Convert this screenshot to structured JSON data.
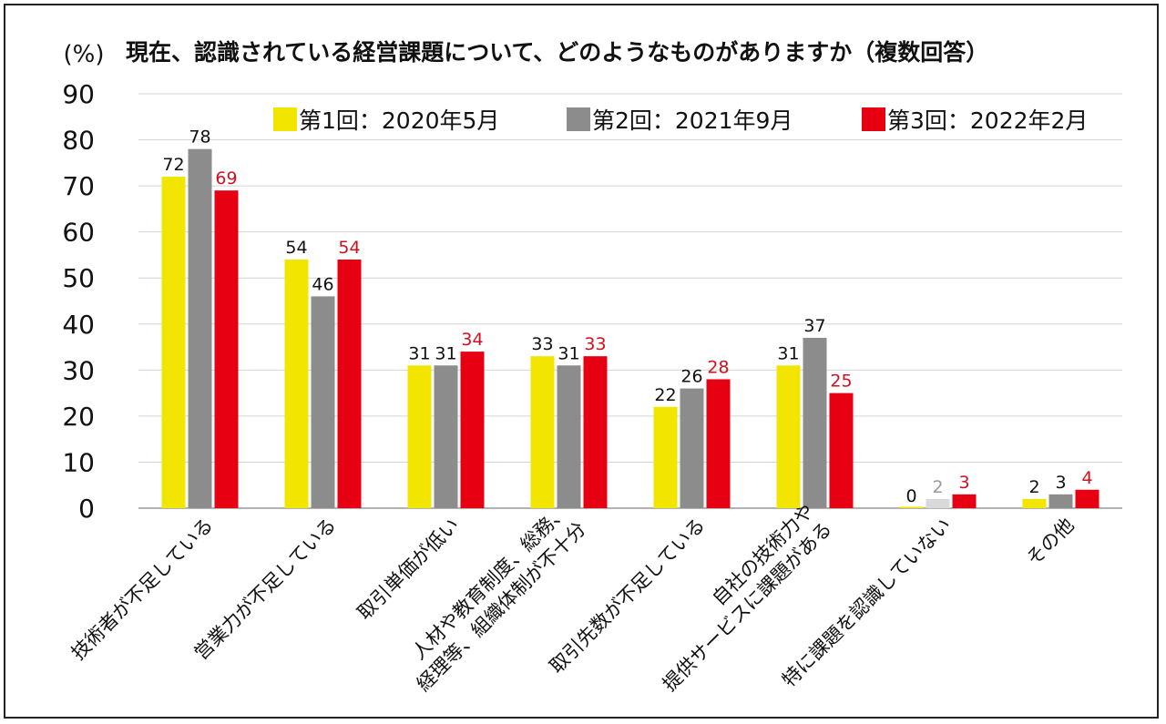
{
  "chart_data": {
    "type": "bar",
    "title": "現在、認識されている経営課題について、どのようなものがありますか（複数回答）",
    "ylabel": "(%)",
    "ylim": [
      0,
      90
    ],
    "yticks": [
      0,
      10,
      20,
      30,
      40,
      50,
      60,
      70,
      80,
      90
    ],
    "grid": true,
    "legend_position": "top-right",
    "categories": [
      [
        "技術者が不足している"
      ],
      [
        "営業力が不足している"
      ],
      [
        "取引単価が低い"
      ],
      [
        "人材や教育制度、総務、",
        "経理等、組織体制が不十分"
      ],
      [
        "取引先数が不足している"
      ],
      [
        "自社の技術力や",
        "提供サービスに課題がある"
      ],
      [
        "特に課題を認識していない"
      ],
      [
        "その他"
      ]
    ],
    "series": [
      {
        "name": "第1回：2020年5月",
        "color": "#f2e600",
        "label_color": "#111111",
        "values": [
          72,
          54,
          31,
          33,
          22,
          31,
          0,
          2
        ]
      },
      {
        "name": "第2回：2021年9月",
        "color": "#8c8c8c",
        "label_color": "#111111",
        "values": [
          78,
          46,
          31,
          31,
          26,
          37,
          2,
          3
        ]
      },
      {
        "name": "第3回：2022年2月",
        "color": "#e60012",
        "label_color": "#d0101e",
        "values": [
          69,
          54,
          34,
          33,
          28,
          25,
          3,
          4
        ]
      }
    ]
  }
}
